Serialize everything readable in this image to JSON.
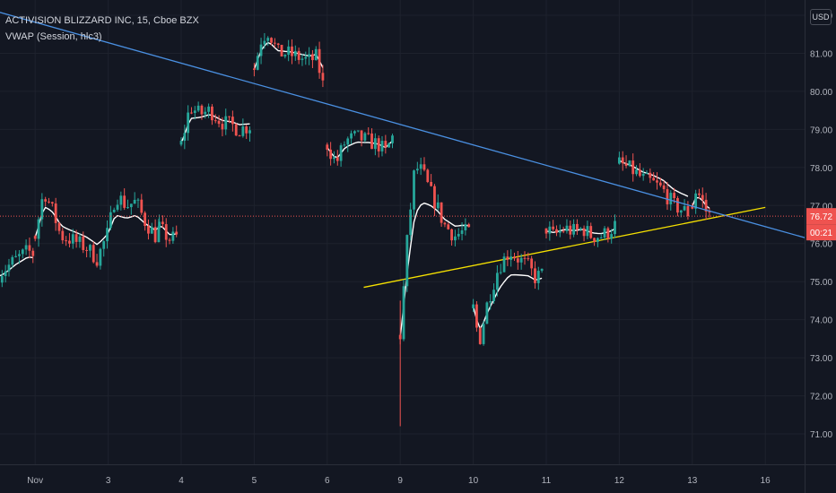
{
  "legend": {
    "symbol_line": "ACTIVISION BLIZZARD INC, 15, Cboe BZX",
    "indicator_line": "VWAP (Session, hlc3)"
  },
  "currency_label": "USD",
  "colors": {
    "background": "#131722",
    "grid": "#1e222d",
    "up": "#26a69a",
    "down": "#ef5350",
    "vwap": "#ffffff",
    "trend_upper": "#4a90e2",
    "trend_lower": "#f5e000",
    "axis_text": "#b2b5be"
  },
  "price_badges": {
    "last_price": "76.72",
    "countdown": "00:21"
  },
  "chart_data": {
    "type": "candlestick",
    "ylim": [
      70.2,
      82.4
    ],
    "y_ticks": [
      {
        "value": 82,
        "label": "82.00"
      },
      {
        "value": 81,
        "label": "81.00"
      },
      {
        "value": 80,
        "label": "80.00"
      },
      {
        "value": 79,
        "label": "79.00"
      },
      {
        "value": 78,
        "label": "78.00"
      },
      {
        "value": 77,
        "label": "77.00"
      },
      {
        "value": 76,
        "label": "76.00"
      },
      {
        "value": 75,
        "label": "75.00"
      },
      {
        "value": 74,
        "label": "74.00"
      },
      {
        "value": 73,
        "label": "73.00"
      },
      {
        "value": 72,
        "label": "72.00"
      },
      {
        "value": 71,
        "label": "71.00"
      }
    ],
    "x_ticks": [
      {
        "label": "Nov",
        "pos": 0.5
      },
      {
        "label": "3",
        "pos": 1.5
      },
      {
        "label": "4",
        "pos": 2.5
      },
      {
        "label": "5",
        "pos": 3.5
      },
      {
        "label": "6",
        "pos": 4.5
      },
      {
        "label": "9",
        "pos": 5.5
      },
      {
        "label": "10",
        "pos": 6.5
      },
      {
        "label": "11",
        "pos": 7.5
      },
      {
        "label": "12",
        "pos": 8.5
      },
      {
        "label": "13",
        "pos": 9.5
      },
      {
        "label": "16",
        "pos": 10.5
      }
    ],
    "last_price": 76.72,
    "sessions": [
      {
        "date": "Oct 30",
        "points": [
          [
            0.0,
            75.2
          ],
          [
            0.25,
            75.6
          ],
          [
            0.4,
            75.8
          ],
          [
            0.5,
            75.7
          ]
        ]
      },
      {
        "date": "Nov 2",
        "points": [
          [
            0.5,
            76.2
          ],
          [
            0.62,
            77.4
          ],
          [
            0.75,
            76.8
          ],
          [
            0.85,
            76.2
          ],
          [
            1.0,
            76.1
          ],
          [
            1.2,
            75.9
          ],
          [
            1.35,
            75.6
          ],
          [
            1.5,
            76.3
          ],
          [
            1.6,
            77.3
          ],
          [
            1.75,
            77.0
          ],
          [
            1.88,
            77.1
          ],
          [
            2.0,
            76.6
          ],
          [
            2.15,
            76.2
          ],
          [
            2.2,
            76.4
          ]
        ]
      },
      {
        "date": "Nov 3",
        "points": [
          [
            2.2,
            76.4
          ],
          [
            2.25,
            76.3
          ],
          [
            2.35,
            76.1
          ],
          [
            2.45,
            76.2
          ]
        ]
      },
      {
        "date": "Nov 4",
        "points": [
          [
            2.5,
            78.6
          ],
          [
            2.62,
            79.6
          ],
          [
            2.75,
            79.4
          ],
          [
            2.9,
            79.5
          ],
          [
            3.05,
            79.2
          ],
          [
            3.2,
            79.1
          ],
          [
            3.3,
            79.0
          ],
          [
            3.45,
            79.1
          ]
        ]
      },
      {
        "date": "Nov 5",
        "points": [
          [
            3.5,
            80.6
          ],
          [
            3.6,
            81.4
          ],
          [
            3.7,
            81.6
          ],
          [
            3.82,
            81.0
          ],
          [
            3.95,
            81.0
          ],
          [
            4.1,
            80.9
          ],
          [
            4.25,
            80.8
          ],
          [
            4.35,
            80.9
          ],
          [
            4.45,
            80.1
          ]
        ]
      },
      {
        "date": "Nov 6",
        "points": [
          [
            4.5,
            78.6
          ],
          [
            4.62,
            78.1
          ],
          [
            4.75,
            78.7
          ],
          [
            4.9,
            78.8
          ],
          [
            5.05,
            78.7
          ],
          [
            5.2,
            78.6
          ],
          [
            5.3,
            78.4
          ],
          [
            5.42,
            78.9
          ]
        ]
      },
      {
        "date": "Nov 9",
        "points": [
          [
            5.5,
            73.6
          ],
          [
            5.6,
            76.2
          ],
          [
            5.7,
            78.0
          ],
          [
            5.8,
            77.9
          ],
          [
            5.9,
            77.4
          ],
          [
            6.0,
            77.0
          ],
          [
            6.1,
            76.5
          ],
          [
            6.25,
            76.2
          ],
          [
            6.35,
            76.3
          ],
          [
            6.45,
            76.3
          ]
        ]
      },
      {
        "date": "Nov 10",
        "points": [
          [
            6.5,
            74.3
          ],
          [
            6.58,
            73.4
          ],
          [
            6.7,
            74.5
          ],
          [
            6.85,
            75.4
          ],
          [
            7.0,
            75.8
          ],
          [
            7.12,
            75.6
          ],
          [
            7.25,
            75.4
          ],
          [
            7.35,
            75.1
          ],
          [
            7.45,
            75.2
          ]
        ]
      },
      {
        "date": "Nov 11",
        "points": [
          [
            7.5,
            76.4
          ],
          [
            7.6,
            76.2
          ],
          [
            7.75,
            76.4
          ],
          [
            7.9,
            76.3
          ],
          [
            8.0,
            76.4
          ],
          [
            8.12,
            76.2
          ],
          [
            8.25,
            76.2
          ],
          [
            8.35,
            76.3
          ],
          [
            8.45,
            76.5
          ]
        ]
      },
      {
        "date": "Nov 12",
        "points": [
          [
            8.5,
            78.1
          ],
          [
            8.6,
            78.0
          ],
          [
            8.7,
            77.9
          ],
          [
            8.82,
            77.7
          ],
          [
            8.95,
            77.6
          ],
          [
            9.1,
            77.4
          ],
          [
            9.25,
            77.0
          ],
          [
            9.35,
            76.9
          ],
          [
            9.45,
            76.8
          ]
        ]
      },
      {
        "date": "Nov 13",
        "points": [
          [
            9.5,
            77.0
          ],
          [
            9.55,
            77.4
          ],
          [
            9.62,
            77.2
          ],
          [
            9.7,
            76.8
          ],
          [
            9.77,
            76.72
          ]
        ]
      }
    ],
    "trendlines": [
      {
        "name": "upper",
        "from": [
          -1.8,
          83.05
        ],
        "to": [
          11.05,
          76.15
        ]
      },
      {
        "name": "lower",
        "from": [
          5.0,
          74.85
        ],
        "to": [
          10.5,
          76.95
        ]
      }
    ]
  }
}
